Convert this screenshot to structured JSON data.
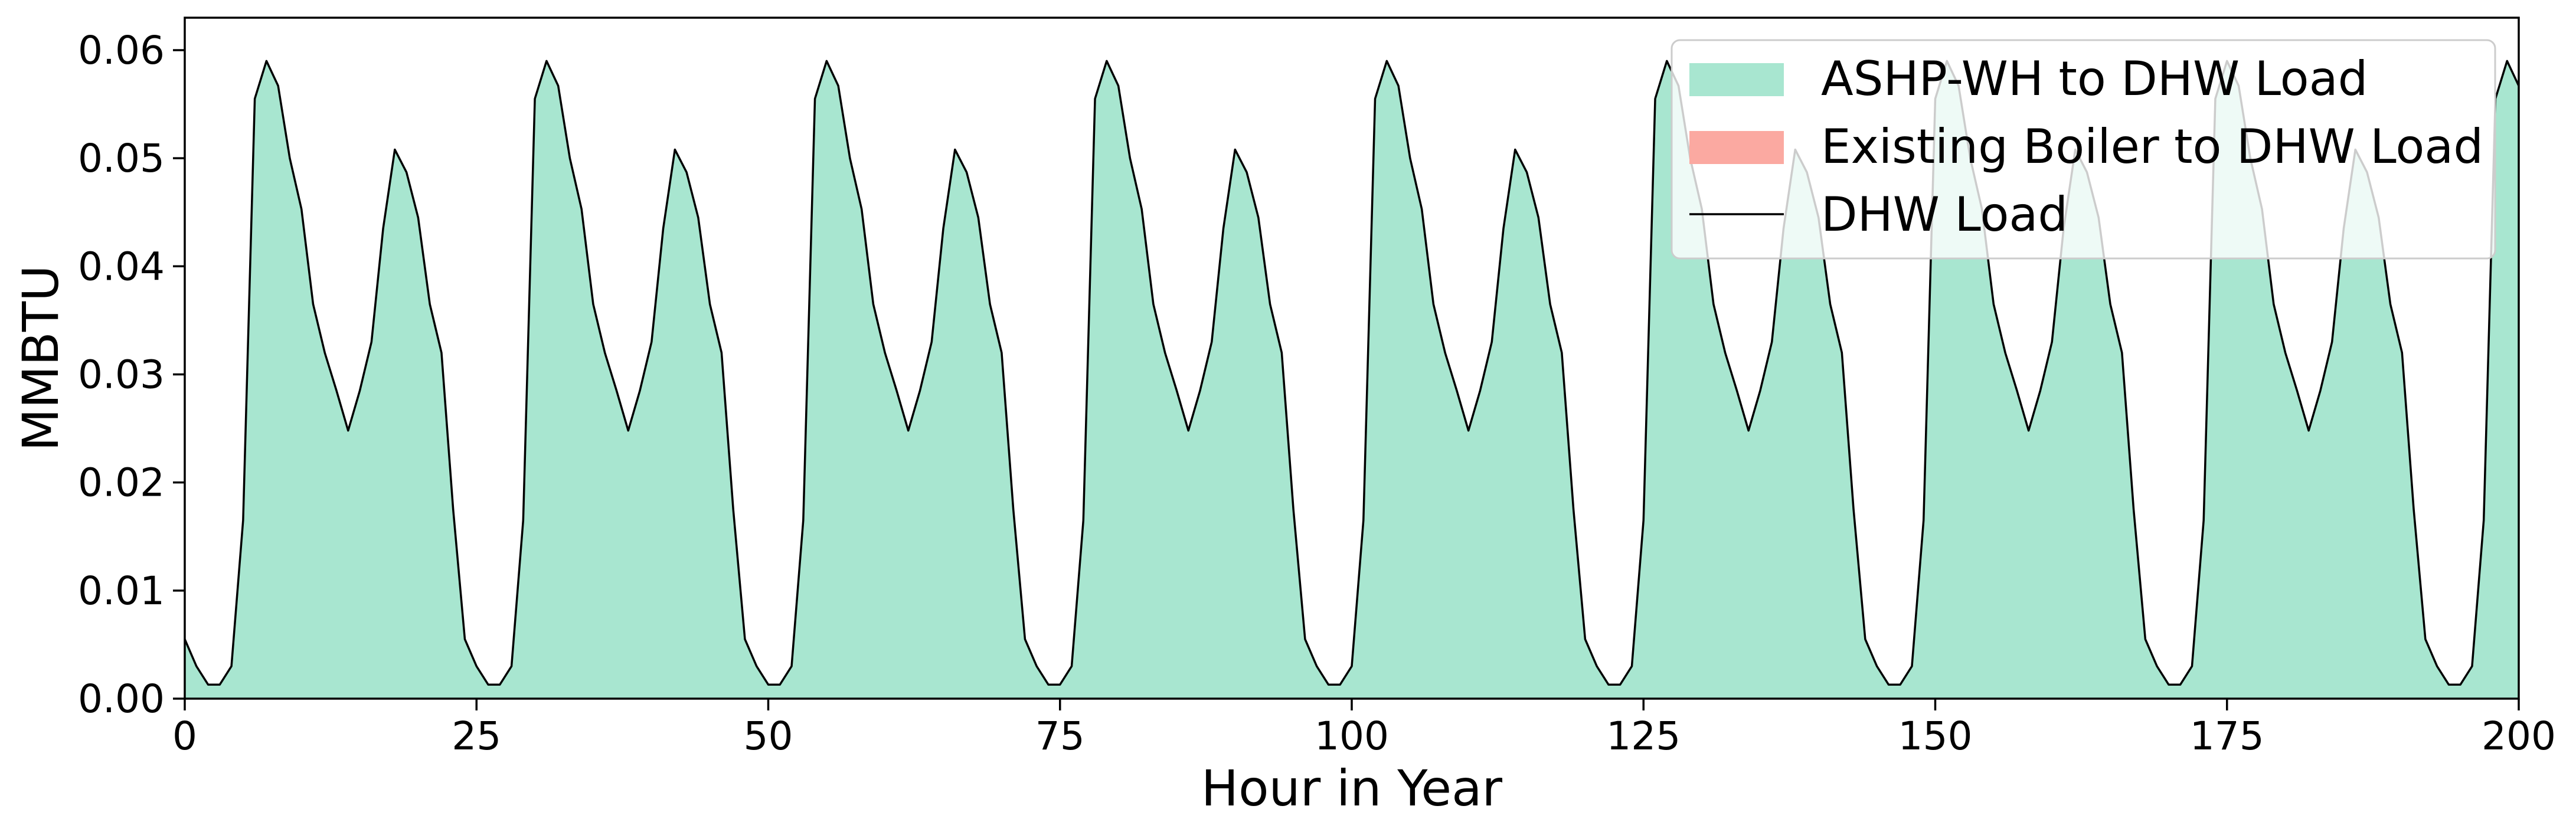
{
  "chart_data": {
    "type": "area",
    "title": "",
    "xlabel": "Hour in Year",
    "ylabel": "MMBTU",
    "xlim": [
      0,
      200
    ],
    "ylim": [
      0,
      0.063
    ],
    "x_ticks": [
      0,
      25,
      50,
      75,
      100,
      125,
      150,
      175,
      200
    ],
    "y_ticks": [
      0.0,
      0.01,
      0.02,
      0.03,
      0.04,
      0.05,
      0.06
    ],
    "x_tick_labels": [
      "0",
      "25",
      "50",
      "75",
      "100",
      "125",
      "150",
      "175",
      "200"
    ],
    "y_tick_labels": [
      "0.00",
      "0.01",
      "0.02",
      "0.03",
      "0.04",
      "0.05",
      "0.06"
    ],
    "grid": false,
    "legend_placement": "upper-right",
    "daily_profile": [
      0.0055,
      0.003,
      0.0013,
      0.0013,
      0.003,
      0.0165,
      0.0555,
      0.059,
      0.0567,
      0.05,
      0.0453,
      0.0365,
      0.032,
      0.0285,
      0.0248,
      0.0285,
      0.033,
      0.0435,
      0.0508,
      0.0487,
      0.0445,
      0.0365,
      0.032,
      0.0175
    ],
    "days": 9,
    "series": [
      {
        "name": "ASHP-WH to DHW Load",
        "kind": "area",
        "color": "#a8e6d0",
        "profile": "daily_profile"
      },
      {
        "name": "Existing Boiler to DHW Load",
        "kind": "area",
        "color": "#fba9a1",
        "constant": 0
      },
      {
        "name": "DHW Load",
        "kind": "line",
        "color": "#000000",
        "profile": "daily_profile"
      }
    ]
  }
}
